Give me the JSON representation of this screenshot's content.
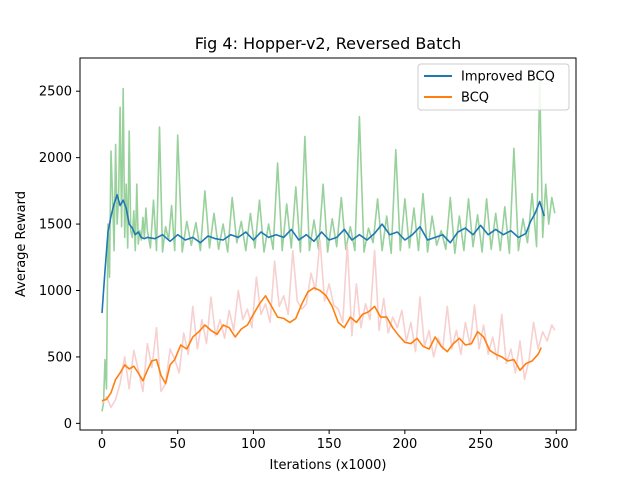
{
  "chart_data": {
    "type": "line",
    "title": "Fig 4: Hopper-v2, Reversed Batch",
    "xlabel": "Iterations (x1000)",
    "ylabel": "Average Reward",
    "xlim": [
      -14.5,
      313
    ],
    "ylim": [
      -50,
      2750
    ],
    "xticks": [
      0,
      50,
      100,
      150,
      200,
      250,
      300
    ],
    "yticks": [
      0,
      500,
      1000,
      1500,
      2000,
      2500
    ],
    "grid": false,
    "legend_position": "top-right",
    "series": [
      {
        "name": "Improved BCQ",
        "role": "smoothed",
        "color": "#1f77b4",
        "x": [
          0,
          2,
          4,
          6,
          8,
          10,
          12,
          14,
          16,
          18,
          20,
          22,
          24,
          26,
          28,
          30,
          35,
          40,
          45,
          50,
          55,
          60,
          65,
          70,
          75,
          80,
          85,
          90,
          95,
          100,
          105,
          110,
          115,
          120,
          125,
          130,
          135,
          140,
          145,
          150,
          155,
          160,
          165,
          170,
          175,
          180,
          185,
          190,
          195,
          200,
          205,
          210,
          215,
          220,
          225,
          230,
          235,
          240,
          245,
          250,
          255,
          260,
          265,
          270,
          275,
          280,
          283,
          286,
          289,
          292
        ],
        "values": [
          830,
          1150,
          1440,
          1560,
          1650,
          1720,
          1640,
          1680,
          1620,
          1500,
          1470,
          1420,
          1440,
          1400,
          1390,
          1400,
          1390,
          1420,
          1370,
          1420,
          1380,
          1400,
          1360,
          1410,
          1390,
          1380,
          1420,
          1400,
          1440,
          1380,
          1440,
          1400,
          1420,
          1400,
          1460,
          1380,
          1420,
          1370,
          1440,
          1380,
          1400,
          1460,
          1380,
          1420,
          1380,
          1430,
          1500,
          1420,
          1440,
          1380,
          1420,
          1480,
          1380,
          1400,
          1420,
          1360,
          1440,
          1470,
          1420,
          1490,
          1420,
          1460,
          1420,
          1450,
          1400,
          1430,
          1520,
          1580,
          1670,
          1560
        ]
      },
      {
        "name": "BCQ",
        "role": "smoothed",
        "color": "#ff7f0e",
        "x": [
          0,
          3,
          6,
          9,
          12,
          15,
          18,
          21,
          24,
          27,
          30,
          33,
          36,
          39,
          42,
          45,
          48,
          52,
          56,
          60,
          64,
          68,
          72,
          76,
          80,
          84,
          88,
          92,
          96,
          100,
          104,
          108,
          112,
          116,
          120,
          124,
          128,
          132,
          136,
          140,
          144,
          148,
          152,
          156,
          160,
          164,
          168,
          172,
          176,
          180,
          184,
          188,
          192,
          196,
          200,
          204,
          208,
          212,
          216,
          220,
          224,
          228,
          232,
          236,
          240,
          244,
          248,
          252,
          256,
          260,
          264,
          268,
          272,
          276,
          280,
          284,
          288,
          290
        ],
        "values": [
          170,
          180,
          230,
          330,
          380,
          440,
          410,
          430,
          380,
          320,
          400,
          470,
          480,
          360,
          300,
          440,
          480,
          590,
          560,
          650,
          690,
          740,
          700,
          670,
          740,
          720,
          650,
          710,
          740,
          820,
          900,
          960,
          880,
          800,
          790,
          760,
          790,
          900,
          990,
          1020,
          1000,
          960,
          880,
          760,
          720,
          800,
          760,
          820,
          840,
          880,
          800,
          800,
          720,
          660,
          610,
          600,
          640,
          580,
          560,
          650,
          580,
          540,
          600,
          640,
          590,
          600,
          690,
          650,
          550,
          520,
          500,
          470,
          480,
          400,
          450,
          470,
          520,
          570
        ]
      },
      {
        "name": "Improved BCQ raw",
        "role": "raw",
        "color": "#98d19b",
        "x": [
          0,
          1,
          2,
          3,
          4,
          5,
          6,
          7,
          8,
          9,
          10,
          11,
          12,
          13,
          14,
          15,
          16,
          17,
          18,
          19,
          20,
          21,
          22,
          23,
          24,
          25,
          26,
          27,
          28,
          29,
          30,
          32,
          34,
          36,
          38,
          40,
          42,
          44,
          46,
          48,
          50,
          53,
          56,
          59,
          62,
          65,
          68,
          71,
          74,
          77,
          80,
          83,
          86,
          89,
          92,
          95,
          98,
          101,
          104,
          107,
          110,
          113,
          116,
          119,
          122,
          125,
          128,
          131,
          134,
          137,
          140,
          143,
          146,
          149,
          152,
          155,
          158,
          161,
          164,
          167,
          170,
          173,
          176,
          179,
          182,
          185,
          188,
          191,
          194,
          197,
          200,
          203,
          206,
          209,
          212,
          215,
          218,
          221,
          224,
          227,
          230,
          233,
          236,
          239,
          242,
          245,
          248,
          251,
          254,
          257,
          260,
          263,
          266,
          269,
          272,
          275,
          278,
          281,
          284,
          287,
          289,
          291,
          293,
          295,
          297,
          299
        ],
        "values": [
          90,
          150,
          480,
          260,
          1500,
          1100,
          2050,
          1700,
          1300,
          2100,
          1500,
          1700,
          2380,
          1480,
          2520,
          1400,
          1800,
          1320,
          2200,
          1450,
          1400,
          1600,
          1300,
          1800,
          1350,
          1450,
          1380,
          1550,
          1400,
          1620,
          1450,
          1320,
          1680,
          1300,
          2230,
          1290,
          1480,
          1380,
          1640,
          1300,
          2170,
          1290,
          1520,
          1340,
          1510,
          1300,
          1750,
          1320,
          1580,
          1310,
          1500,
          1290,
          1700,
          1360,
          1520,
          1300,
          1580,
          1320,
          1680,
          1290,
          1500,
          1310,
          1960,
          1300,
          1650,
          1320,
          1780,
          1290,
          2160,
          1300,
          1530,
          1310,
          1800,
          1290,
          1540,
          1330,
          1700,
          1310,
          1480,
          1300,
          2310,
          1290,
          1470,
          1360,
          1690,
          1300,
          1560,
          1280,
          2060,
          1300,
          1690,
          1320,
          1620,
          1300,
          1730,
          1290,
          1560,
          1340,
          1450,
          1310,
          1700,
          1280,
          1560,
          1300,
          1690,
          1330,
          1570,
          1290,
          1690,
          1310,
          1580,
          1300,
          1630,
          1280,
          2070,
          1300,
          1540,
          1360,
          1730,
          1330,
          2570,
          1400,
          1800,
          1500,
          1700,
          1580
        ]
      },
      {
        "name": "BCQ raw",
        "role": "raw",
        "color": "#f7d0d0",
        "x": [
          0,
          3,
          6,
          9,
          12,
          15,
          18,
          21,
          24,
          27,
          30,
          33,
          36,
          39,
          42,
          45,
          48,
          51,
          54,
          57,
          60,
          63,
          66,
          69,
          72,
          75,
          78,
          81,
          84,
          87,
          90,
          93,
          96,
          99,
          102,
          105,
          108,
          111,
          114,
          117,
          120,
          123,
          126,
          129,
          132,
          135,
          138,
          141,
          144,
          147,
          150,
          153,
          156,
          159,
          162,
          165,
          168,
          171,
          174,
          177,
          180,
          183,
          186,
          189,
          192,
          195,
          198,
          201,
          204,
          207,
          210,
          213,
          216,
          219,
          222,
          225,
          228,
          231,
          234,
          237,
          240,
          243,
          246,
          249,
          252,
          255,
          258,
          261,
          264,
          267,
          270,
          273,
          276,
          279,
          282,
          285,
          288,
          291,
          294,
          297,
          299
        ],
        "values": [
          150,
          200,
          120,
          180,
          300,
          500,
          260,
          550,
          400,
          240,
          600,
          420,
          720,
          240,
          300,
          560,
          480,
          380,
          680,
          520,
          880,
          560,
          780,
          600,
          950,
          660,
          780,
          640,
          850,
          700,
          1000,
          780,
          860,
          720,
          1100,
          820,
          900,
          760,
          1220,
          880,
          960,
          820,
          1300,
          920,
          860,
          900,
          1130,
          1000,
          1380,
          920,
          1050,
          890,
          860,
          760,
          1350,
          660,
          1050,
          720,
          900,
          780,
          1300,
          700,
          940,
          680,
          800,
          720,
          850,
          620,
          760,
          540,
          950,
          580,
          700,
          500,
          640,
          560,
          880,
          560,
          700,
          520,
          760,
          590,
          890,
          560,
          740,
          520,
          650,
          480,
          820,
          450,
          560,
          380,
          620,
          330,
          480,
          760,
          560,
          690,
          620,
          740,
          700
        ]
      }
    ]
  }
}
